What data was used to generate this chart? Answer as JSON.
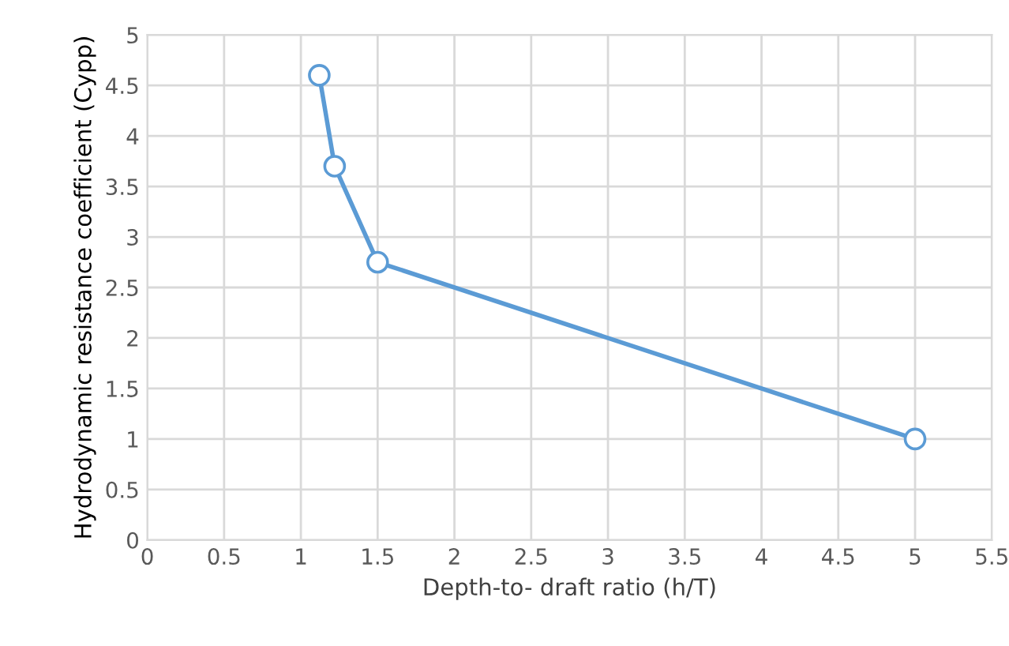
{
  "chart_data": {
    "type": "line",
    "xlabel": "Depth-to- draft ratio (h/T)",
    "ylabel": "Hydrodynamic resistance coefficient (Cypp)",
    "x": [
      1.12,
      1.22,
      1.5,
      5
    ],
    "series": [
      {
        "color": "#5b9bd5",
        "values": [
          4.6,
          3.7,
          2.75,
          1.0
        ]
      }
    ],
    "xlim": [
      0,
      5.5
    ],
    "xticks": [
      0,
      0.5,
      1,
      1.5,
      2,
      2.5,
      3,
      3.5,
      4,
      4.5,
      5,
      5.5
    ],
    "ylim": [
      0,
      5
    ],
    "yticks": [
      0,
      0.5,
      1,
      1.5,
      2,
      2.5,
      3,
      3.5,
      4,
      4.5,
      5
    ],
    "grid": true,
    "marker": "circle",
    "line_style": "solid"
  }
}
